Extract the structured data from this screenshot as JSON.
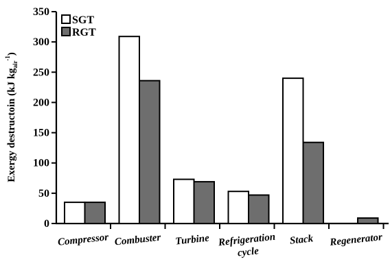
{
  "chart_data": {
    "type": "bar",
    "title": "",
    "xlabel": "",
    "ylabel": "Exergy destructoin (kJ kg",
    "ylabel_sub": "air",
    "ylabel_sup": "-1",
    "ylabel_close": ")",
    "ylim": [
      0,
      350
    ],
    "yticks": [
      0,
      50,
      100,
      150,
      200,
      250,
      300,
      350
    ],
    "categories": [
      [
        "Compressor"
      ],
      [
        "Combuster"
      ],
      [
        "Turbine"
      ],
      [
        "Refrigeration",
        "cycle"
      ],
      [
        "Stack"
      ],
      [
        "Regenerator"
      ]
    ],
    "series": [
      {
        "name": "SGT",
        "color": "#ffffff",
        "values": [
          35,
          309,
          73,
          53,
          240,
          0
        ]
      },
      {
        "name": "RGT",
        "color": "#6e6e6e",
        "values": [
          35,
          236,
          69,
          47,
          134,
          9
        ]
      }
    ],
    "legend": "top-left",
    "grid": false
  }
}
